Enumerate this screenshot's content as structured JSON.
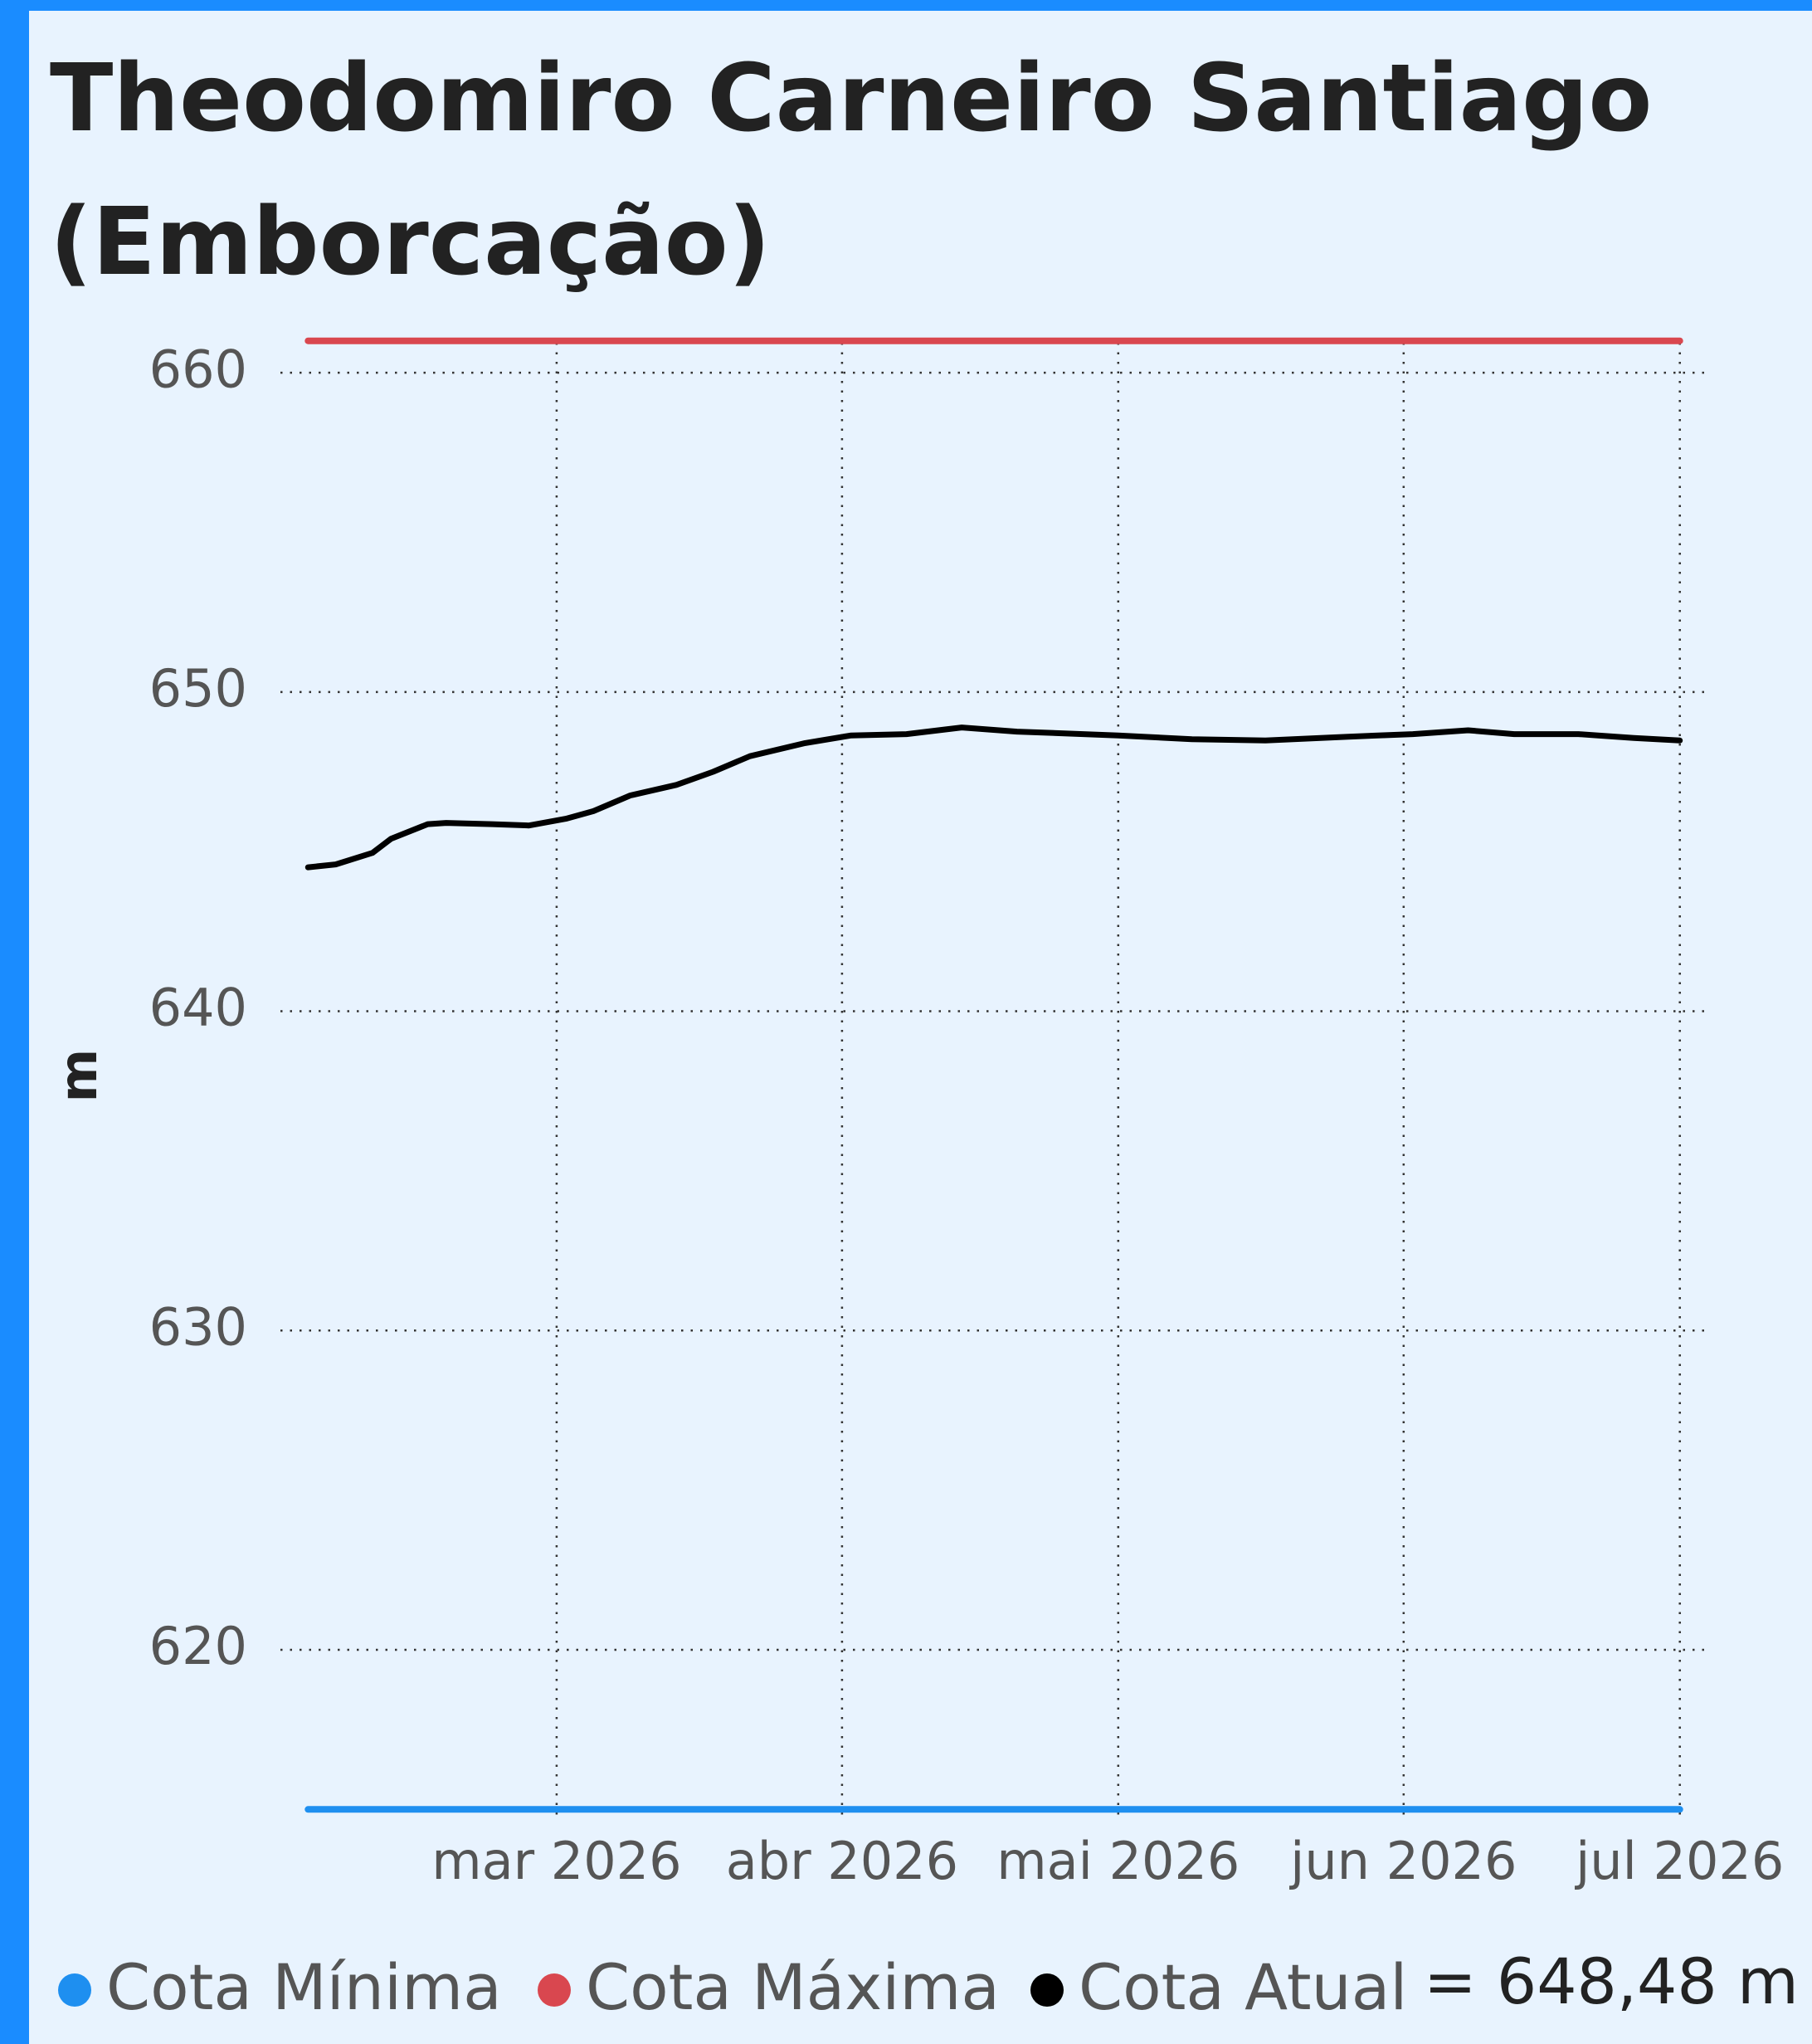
{
  "chart_data": {
    "type": "line",
    "title": [
      "Theodomiro Carneiro Santiago",
      "(Emborcação)"
    ],
    "ylabel": "m",
    "annotation": "= 648,48 m",
    "xlim": [
      -3,
      152
    ],
    "ylim": [
      614.8,
      661.2
    ],
    "yticks": [
      620,
      630,
      640,
      650,
      660
    ],
    "xticks": [
      {
        "value": 27,
        "label": "mar 2026"
      },
      {
        "value": 58,
        "label": "abr 2026"
      },
      {
        "value": 88,
        "label": "mai 2026"
      },
      {
        "value": 119,
        "label": "jun 2026"
      },
      {
        "value": 149,
        "label": "jul 2026"
      }
    ],
    "grid": true,
    "series": [
      {
        "name": "Cota Mínima",
        "color": "#1e8ff0",
        "x": [
          0,
          149
        ],
        "values": [
          615,
          615
        ]
      },
      {
        "name": "Cota Máxima",
        "color": "#d9474f",
        "x": [
          0,
          149
        ],
        "values": [
          661,
          661
        ]
      },
      {
        "name": "Cota Atual",
        "color": "#000000",
        "x": [
          0,
          3,
          7,
          9,
          13,
          15,
          20,
          24,
          28,
          31,
          35,
          40,
          44,
          48,
          54,
          59,
          65,
          71,
          77,
          88,
          96,
          104,
          113,
          120,
          126,
          131,
          138,
          144,
          149
        ],
        "values": [
          644.51,
          644.6,
          644.96,
          645.4,
          645.86,
          645.9,
          645.86,
          645.82,
          646.03,
          646.27,
          646.76,
          647.09,
          647.5,
          647.99,
          648.4,
          648.64,
          648.68,
          648.89,
          648.76,
          648.64,
          648.52,
          648.48,
          648.6,
          648.68,
          648.8,
          648.68,
          648.68,
          648.56,
          648.48
        ]
      }
    ]
  }
}
